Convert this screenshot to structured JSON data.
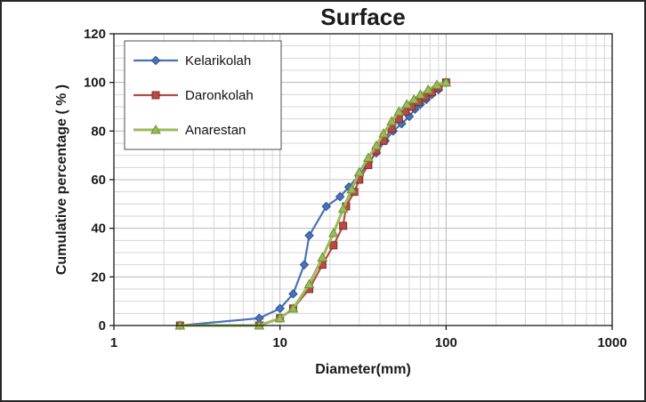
{
  "chart_data": {
    "type": "line",
    "title": "Surface",
    "xlabel": "Diameter(mm)",
    "ylabel": "Cumulative percentage ( % )",
    "x_scale": "log",
    "xlim": [
      1,
      1000
    ],
    "ylim": [
      0,
      120
    ],
    "x_ticks": [
      1,
      10,
      100,
      1000
    ],
    "y_ticks": [
      0,
      20,
      40,
      60,
      80,
      100,
      120
    ],
    "grid": true,
    "legend_position": "top-left",
    "colors": {
      "grid_minor": "#d6d6d6",
      "grid_major": "#b8b8b8",
      "plot_border": "#1a1a1a",
      "legend_border": "#4d4d4d"
    },
    "series": [
      {
        "name": "Kelarikolah",
        "color": "#4a72b8",
        "edge": "#2e5392",
        "marker": "diamond",
        "line_width": 2.2,
        "points": [
          [
            2.5,
            0
          ],
          [
            7.5,
            3
          ],
          [
            10,
            7
          ],
          [
            12,
            13
          ],
          [
            14,
            25
          ],
          [
            15,
            37
          ],
          [
            19,
            49
          ],
          [
            23,
            53
          ],
          [
            26,
            57
          ],
          [
            30,
            62
          ],
          [
            34,
            67
          ],
          [
            38,
            71
          ],
          [
            43,
            76
          ],
          [
            48,
            80
          ],
          [
            54,
            83
          ],
          [
            60,
            86
          ],
          [
            65,
            89
          ],
          [
            70,
            91
          ],
          [
            76,
            93
          ],
          [
            82,
            95
          ],
          [
            90,
            97
          ],
          [
            100,
            100
          ]
        ]
      },
      {
        "name": "Daronkolah",
        "color": "#b84a44",
        "edge": "#7f2f2c",
        "marker": "square",
        "line_width": 2.2,
        "points": [
          [
            2.5,
            0
          ],
          [
            7.5,
            0
          ],
          [
            10,
            3
          ],
          [
            12,
            7
          ],
          [
            15,
            15
          ],
          [
            18,
            25
          ],
          [
            21,
            33
          ],
          [
            24,
            41
          ],
          [
            25,
            49
          ],
          [
            28,
            55
          ],
          [
            30,
            60
          ],
          [
            34,
            66
          ],
          [
            38,
            72
          ],
          [
            42,
            76
          ],
          [
            47,
            81
          ],
          [
            52,
            85
          ],
          [
            57,
            88
          ],
          [
            62,
            90
          ],
          [
            68,
            92
          ],
          [
            75,
            94
          ],
          [
            82,
            96
          ],
          [
            90,
            98
          ],
          [
            100,
            100
          ]
        ]
      },
      {
        "name": "Anarestan",
        "color": "#9bbb59",
        "edge": "#6f8f35",
        "marker": "triangle",
        "line_width": 3,
        "points": [
          [
            2.5,
            0
          ],
          [
            7.5,
            0
          ],
          [
            10,
            3
          ],
          [
            12,
            7
          ],
          [
            15,
            17
          ],
          [
            18,
            28
          ],
          [
            21,
            38
          ],
          [
            24,
            48
          ],
          [
            27,
            56
          ],
          [
            30,
            63
          ],
          [
            34,
            69
          ],
          [
            38,
            74
          ],
          [
            42,
            79
          ],
          [
            47,
            84
          ],
          [
            52,
            88
          ],
          [
            58,
            91
          ],
          [
            64,
            93
          ],
          [
            70,
            95
          ],
          [
            78,
            97
          ],
          [
            88,
            99
          ],
          [
            100,
            100
          ]
        ]
      }
    ]
  }
}
